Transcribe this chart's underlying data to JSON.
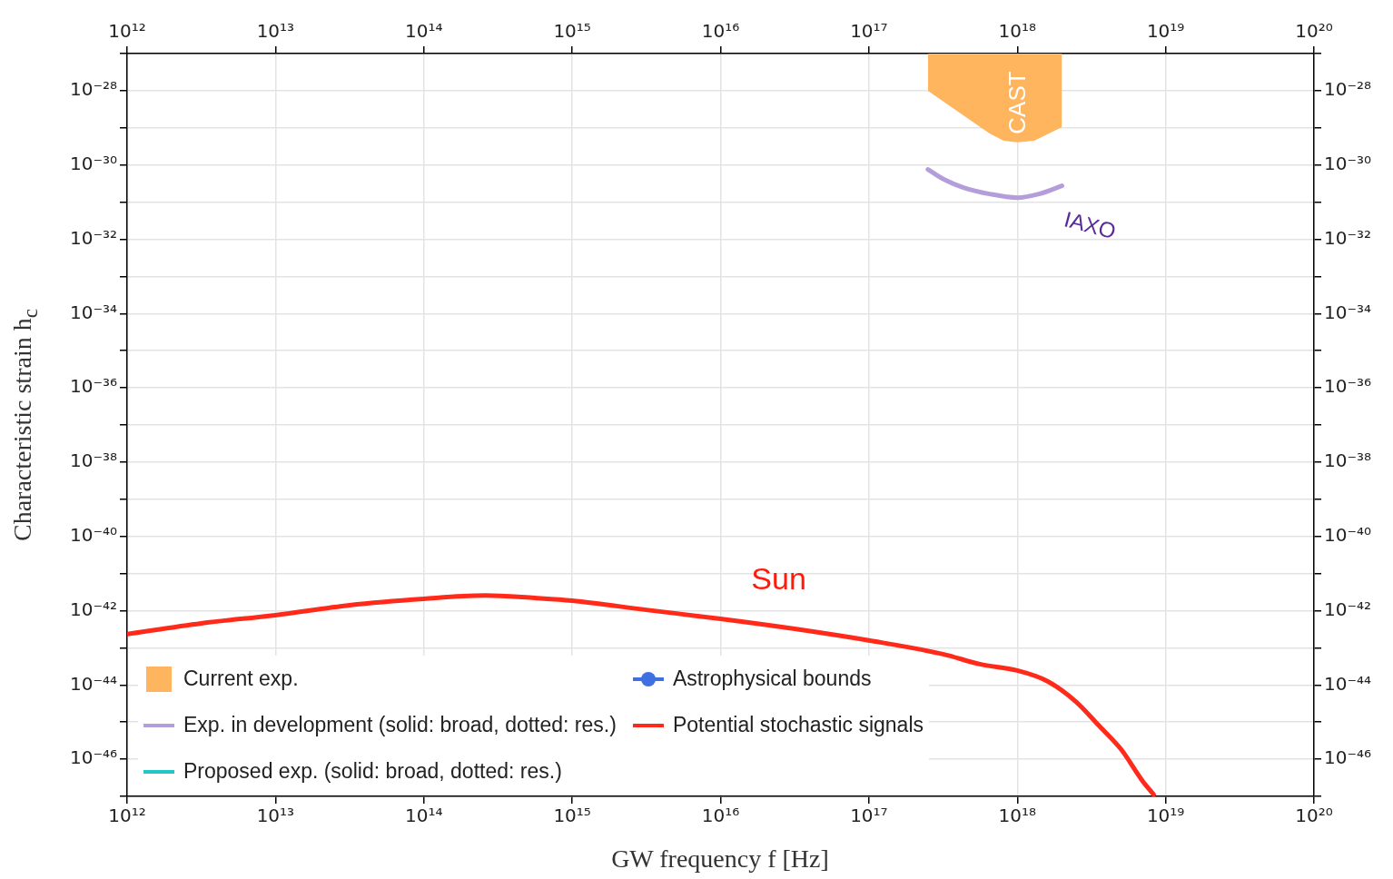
{
  "chart_data": {
    "type": "line",
    "xlabel": "GW frequency f [Hz]",
    "ylabel": "Characteristic strain h$_{c}$",
    "log": "xy",
    "grid": true,
    "legend": "bottom left",
    "xlim": [
      1000000000000.0,
      1e+20
    ],
    "xticks": [
      {
        "value": 1000000000000.0,
        "label": "10¹²"
      },
      {
        "value": 10000000000000.0,
        "label": "10¹³"
      },
      {
        "value": 100000000000000.0,
        "label": "10¹⁴"
      },
      {
        "value": 1000000000000000.0,
        "label": "10¹⁵"
      },
      {
        "value": 1e+16,
        "label": "10¹⁶"
      },
      {
        "value": 1e+17,
        "label": "10¹⁷"
      },
      {
        "value": 1e+18,
        "label": "10¹⁸"
      },
      {
        "value": 1e+19,
        "label": "10¹⁹"
      },
      {
        "value": 1e+20,
        "label": "10²⁰"
      }
    ],
    "ylim": [
      1e-47,
      1e-27
    ],
    "yticks": [
      {
        "value": 1e-47,
        "label": null
      },
      {
        "value": 1e-46,
        "label": "10⁻⁴⁶"
      },
      {
        "value": 1e-45,
        "label": null
      },
      {
        "value": 1e-44,
        "label": "10⁻⁴⁴"
      },
      {
        "value": 1e-43,
        "label": null
      },
      {
        "value": 1e-42,
        "label": "10⁻⁴²"
      },
      {
        "value": 1e-41,
        "label": null
      },
      {
        "value": 1e-40,
        "label": "10⁻⁴⁰"
      },
      {
        "value": 1e-39,
        "label": null
      },
      {
        "value": 1e-38,
        "label": "10⁻³⁸"
      },
      {
        "value": 1e-37,
        "label": null
      },
      {
        "value": 1e-36,
        "label": "10⁻³⁶"
      },
      {
        "value": 1e-35,
        "label": null
      },
      {
        "value": 1e-34,
        "label": "10⁻³⁴"
      },
      {
        "value": 1e-33,
        "label": null
      },
      {
        "value": 1e-32,
        "label": "10⁻³²"
      },
      {
        "value": 1e-31,
        "label": null
      },
      {
        "value": 1e-30,
        "label": "10⁻³⁰"
      },
      {
        "value": 1e-29,
        "label": null
      },
      {
        "value": 1e-28,
        "label": "10⁻²⁸"
      },
      {
        "value": 1e-27,
        "label": null
      }
    ],
    "series": [
      {
        "type": "area",
        "name": "Current exp.",
        "color": "#ffb55e",
        "x": [
          2.5e+17,
          2.5e+17,
          6.5e+17,
          8.1e+17,
          1e+18,
          1.3e+18,
          2e+18,
          2e+18
        ],
        "values": [
          1e-27,
          1e-28,
          7.1e-30,
          4.5e-30,
          4.1e-30,
          4.5e-30,
          1.05e-29,
          1e-27
        ]
      },
      {
        "type": "line",
        "name": "Exp. in development (solid: broad, dotted: res.)",
        "color": "#b39ddb",
        "x": [
          2.5e+17,
          3.2e+17,
          4.3e+17,
          6.5e+17,
          1e+18,
          1.4e+18,
          2e+18
        ],
        "values": [
          7.6e-31,
          4.1e-31,
          2.5e-31,
          1.66e-31,
          1.32e-31,
          1.66e-31,
          2.75e-31
        ]
      },
      {
        "type": "line",
        "name": "Proposed exp. (solid: broad, dotted: res.)",
        "color": "#22c7c7"
      },
      {
        "type": "line",
        "name": "Astrophysical bounds",
        "color": "#3f6fe0",
        "marker": "circle"
      },
      {
        "type": "line",
        "name": "Potential stochastic signals",
        "color": "#ff2a1a",
        "x": [
          1000000000000.0,
          3160000000000.0,
          10000000000000.0,
          31600000000000.0,
          100000000000000.0,
          260000000000000.0,
          560000000000000.0,
          1000000000000000.0,
          3160000000000000.0,
          1e+16,
          3.16e+16,
          1e+17,
          3.16e+17,
          5.6e+17,
          1e+18,
          1.6e+18,
          2.5e+18,
          3.5e+18,
          5e+18,
          7e+18,
          8.3e+18
        ],
        "values": [
          2.34e-43,
          4.57e-43,
          7.59e-43,
          1.41e-42,
          2.09e-42,
          2.57e-42,
          2.19e-42,
          1.86e-42,
          1.05e-42,
          6.03e-43,
          3.24e-43,
          1.58e-43,
          6.76e-44,
          3.63e-44,
          2.45e-44,
          1.26e-44,
          3.47e-45,
          8.51e-46,
          1.86e-46,
          2.57e-47,
          1.12e-47
        ]
      }
    ],
    "annotations": [
      "CAST",
      "IAXO",
      "Sun"
    ]
  }
}
